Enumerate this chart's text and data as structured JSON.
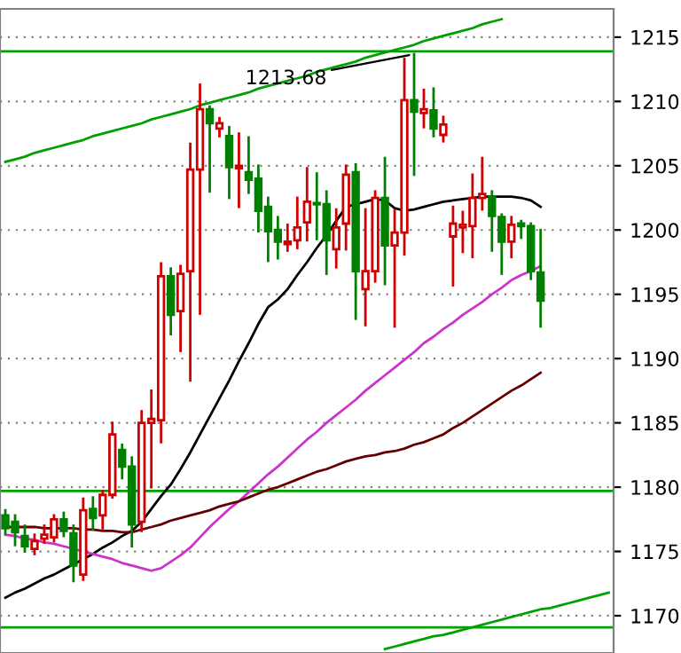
{
  "chart_data": {
    "type": "candlestick",
    "categories": [
      null,
      null,
      null,
      null,
      null,
      null,
      null,
      null,
      null,
      null,
      null,
      null,
      null,
      null,
      null,
      null,
      null,
      null,
      null,
      null,
      null,
      null,
      null,
      null,
      null,
      null,
      null,
      null,
      null,
      null,
      null,
      null,
      null,
      null,
      null,
      null,
      null,
      null,
      null,
      null,
      null,
      null,
      null,
      null,
      null,
      null,
      null,
      null,
      null,
      null,
      null,
      null,
      null,
      null,
      null,
      null,
      null,
      null,
      null,
      null,
      null,
      null,
      null
    ],
    "ohlc": [
      [
        1177.8,
        1178.2,
        1176.4,
        1176.8
      ],
      [
        1177.3,
        1177.8,
        1175.5,
        1176.5
      ],
      [
        1176.2,
        1177,
        1175,
        1175.4
      ],
      [
        1175.2,
        1176.3,
        1174.8,
        1175.8
      ],
      [
        1176,
        1177,
        1175.7,
        1176.3
      ],
      [
        1176.1,
        1177.8,
        1175.8,
        1177.5
      ],
      [
        1177.5,
        1178,
        1176.2,
        1176.6
      ],
      [
        1176.4,
        1177,
        1172.7,
        1173.9
      ],
      [
        1173.2,
        1179.1,
        1172.8,
        1178.2
      ],
      [
        1178.3,
        1179.2,
        1176.7,
        1177.6
      ],
      [
        1177.8,
        1179.7,
        1176.8,
        1179.4
      ],
      [
        1179.4,
        1185,
        1179.2,
        1184.1
      ],
      [
        1182.9,
        1183.3,
        1180.7,
        1181.6
      ],
      [
        1181.6,
        1182.3,
        1175.4,
        1177.1
      ],
      [
        1177.3,
        1185.9,
        1176.6,
        1185
      ],
      [
        1185,
        1187.5,
        1180,
        1185.3
      ],
      [
        1185.2,
        1197.4,
        1183.5,
        1196.4
      ],
      [
        1196.4,
        1197,
        1191.9,
        1193.4
      ],
      [
        1193.7,
        1197.2,
        1190.6,
        1196.6
      ],
      [
        1196.8,
        1206.7,
        1188.3,
        1204.7
      ],
      [
        1204.7,
        1211.3,
        1193.5,
        1209.4
      ],
      [
        1209.4,
        1209.6,
        1203,
        1208.3
      ],
      [
        1207.9,
        1208.7,
        1207.3,
        1208.3
      ],
      [
        1207.3,
        1208,
        1202.5,
        1204.9
      ],
      [
        1204.8,
        1207.5,
        1201.8,
        1205
      ],
      [
        1204.5,
        1207.2,
        1202.9,
        1203.9
      ],
      [
        1204,
        1205,
        1199.9,
        1201.5
      ],
      [
        1201.8,
        1202.5,
        1197.6,
        1199.9
      ],
      [
        1200,
        1201,
        1197.8,
        1199.1
      ],
      [
        1198.9,
        1200.4,
        1198.4,
        1199.1
      ],
      [
        1199.2,
        1202.5,
        1198.6,
        1200.2
      ],
      [
        1200.6,
        1204.8,
        1199.2,
        1202.2
      ],
      [
        1202.1,
        1204.4,
        1199.3,
        1202
      ],
      [
        1202,
        1203,
        1196.6,
        1199.2
      ],
      [
        1198.5,
        1201.6,
        1197.1,
        1200.2
      ],
      [
        1200.5,
        1205,
        1198.5,
        1204.3
      ],
      [
        1204.5,
        1205.1,
        1193.1,
        1196.8
      ],
      [
        1195.4,
        1201.6,
        1192.6,
        1196.8
      ],
      [
        1196.8,
        1203,
        1196,
        1202.5
      ],
      [
        1202.5,
        1205.6,
        1195.8,
        1198.8
      ],
      [
        1198.8,
        1201.5,
        1192.5,
        1199.8
      ],
      [
        1199.8,
        1213.3,
        1198.1,
        1210.1
      ],
      [
        1210.1,
        1213.68,
        1204.3,
        1209.2
      ],
      [
        1209.1,
        1210.9,
        1208,
        1209.4
      ],
      [
        1209.3,
        1211,
        1207.3,
        1207.9
      ],
      [
        1207.4,
        1208.8,
        1206.9,
        1208.2
      ],
      [
        1199.5,
        1201.8,
        1195.7,
        1200.5
      ],
      [
        1200.2,
        1201.4,
        1198.3,
        1200.4
      ],
      [
        1200.3,
        1204.3,
        1197.9,
        1202.5
      ],
      [
        1202.5,
        1205.6,
        1201.6,
        1202.8
      ],
      [
        1202.6,
        1203,
        1198.4,
        1201.1
      ],
      [
        1201,
        1201.2,
        1196.6,
        1199.1
      ],
      [
        1199.1,
        1201,
        1197.9,
        1200.4
      ],
      [
        1200.5,
        1200.7,
        1199.4,
        1200.3
      ],
      [
        1200.3,
        1200.5,
        1196.2,
        1196.8
      ],
      [
        1196.7,
        1200,
        1192.5,
        1194.5
      ],
      null,
      null,
      null,
      null,
      null,
      null,
      null
    ],
    "colors": [
      "#008000",
      "#008000",
      "#008000",
      "#d00000",
      "#d00000",
      "#d00000",
      "#008000",
      "#008000",
      "#d00000",
      "#008000",
      "#d00000",
      "#d00000",
      "#008000",
      "#008000",
      "#d00000",
      "#d00000",
      "#d00000",
      "#008000",
      "#d00000",
      "#d00000",
      "#d00000",
      "#008000",
      "#d00000",
      "#008000",
      "#d00000",
      "#008000",
      "#008000",
      "#008000",
      "#008000",
      "#d00000",
      "#d00000",
      "#d00000",
      "#008000",
      "#008000",
      "#d00000",
      "#d00000",
      "#008000",
      "#d00000",
      "#d00000",
      "#008000",
      "#d00000",
      "#d00000",
      "#008000",
      "#d00000",
      "#008000",
      "#d00000",
      "#d00000",
      "#d00000",
      "#d00000",
      "#d00000",
      "#008000",
      "#008000",
      "#d00000",
      "#008000",
      "#008000",
      "#008000",
      null,
      null,
      null,
      null,
      null,
      null,
      null
    ],
    "series": [
      {
        "type": "line",
        "color": "#000000",
        "values": [
          1171.4,
          1171.8,
          1172.1,
          1172.5,
          1172.9,
          1173.2,
          1173.6,
          1174.0,
          1174.4,
          1174.8,
          1175.3,
          1175.7,
          1176.2,
          1176.6,
          1177.3,
          1178.3,
          1179.3,
          1180.2,
          1181.4,
          1182.7,
          1184.1,
          1185.5,
          1186.9,
          1188.3,
          1189.8,
          1191.2,
          1192.7,
          1194.0,
          1194.6,
          1195.4,
          1196.5,
          1197.5,
          1198.6,
          1199.6,
          1200.7,
          1201.8,
          1202.0,
          1202.2,
          1202.4,
          1202.3,
          1201.7,
          1201.5,
          1201.6,
          1201.8,
          1202.0,
          1202.2,
          1202.3,
          1202.4,
          1202.5,
          1202.6,
          1202.6,
          1202.6,
          1202.6,
          1202.5,
          1202.3,
          1201.8,
          null,
          null,
          null,
          null,
          null,
          null,
          null
        ]
      },
      {
        "type": "line",
        "color": "#cc33cc",
        "values": [
          1176.3,
          1176.2,
          1176.0,
          1175.9,
          1175.7,
          1175.6,
          1175.4,
          1175.2,
          1175.0,
          1174.8,
          1174.6,
          1174.4,
          1174.1,
          1173.9,
          1173.7,
          1173.5,
          1173.7,
          1174.2,
          1174.7,
          1175.3,
          1176.1,
          1176.9,
          1177.6,
          1178.3,
          1178.9,
          1179.6,
          1180.3,
          1181.0,
          1181.6,
          1182.3,
          1183.0,
          1183.7,
          1184.3,
          1185.0,
          1185.6,
          1186.2,
          1186.8,
          1187.5,
          1188.1,
          1188.7,
          1189.3,
          1189.9,
          1190.5,
          1191.2,
          1191.7,
          1192.3,
          1192.8,
          1193.4,
          1193.9,
          1194.4,
          1195.0,
          1195.5,
          1196.1,
          1196.5,
          1196.8,
          1197.2,
          null,
          null,
          null,
          null,
          null,
          null,
          null
        ]
      },
      {
        "type": "line",
        "color": "#660000",
        "values": [
          1176.9,
          1176.9,
          1176.9,
          1176.9,
          1176.8,
          1176.8,
          1176.8,
          1176.8,
          1176.7,
          1176.7,
          1176.6,
          1176.6,
          1176.5,
          1176.5,
          1176.7,
          1176.9,
          1177.1,
          1177.4,
          1177.6,
          1177.8,
          1178.0,
          1178.2,
          1178.5,
          1178.7,
          1178.9,
          1179.2,
          1179.5,
          1179.8,
          1180.0,
          1180.3,
          1180.6,
          1180.9,
          1181.2,
          1181.4,
          1181.7,
          1182.0,
          1182.2,
          1182.4,
          1182.5,
          1182.7,
          1182.8,
          1183.0,
          1183.3,
          1183.5,
          1183.8,
          1184.1,
          1184.6,
          1185.0,
          1185.5,
          1186.0,
          1186.5,
          1187.0,
          1187.5,
          1187.9,
          1188.4,
          1188.9,
          null,
          null,
          null,
          null,
          null,
          null,
          null
        ]
      },
      {
        "type": "line",
        "color": "#00a000",
        "values": [
          1205.3,
          1205.5,
          1205.7,
          1206.0,
          1206.2,
          1206.4,
          1206.6,
          1206.8,
          1207.0,
          1207.3,
          1207.5,
          1207.7,
          1207.9,
          1208.1,
          1208.3,
          1208.6,
          1208.8,
          1209.0,
          1209.2,
          1209.4,
          1209.7,
          1209.9,
          1210.1,
          1210.3,
          1210.5,
          1210.7,
          1211.0,
          1211.2,
          1211.4,
          1211.6,
          1211.8,
          1212.0,
          1212.3,
          1212.5,
          1212.7,
          1212.9,
          1213.1,
          1213.4,
          1213.6,
          1213.8,
          1214.0,
          1214.2,
          1214.4,
          1214.7,
          1214.9,
          1215.1,
          1215.3,
          1215.5,
          1215.7,
          1216.0,
          1216.2,
          1216.4,
          null,
          null,
          null,
          null,
          null,
          null,
          null,
          null,
          null,
          null,
          null
        ]
      },
      {
        "type": "line",
        "color": "#00a000",
        "values": [
          null,
          null,
          null,
          null,
          null,
          null,
          null,
          null,
          null,
          null,
          null,
          null,
          null,
          null,
          null,
          null,
          null,
          null,
          null,
          null,
          null,
          null,
          null,
          null,
          null,
          null,
          null,
          null,
          null,
          null,
          null,
          null,
          null,
          null,
          null,
          null,
          null,
          null,
          null,
          1167.4,
          1167.6,
          1167.8,
          1168.0,
          1168.2,
          1168.4,
          1168.5,
          1168.7,
          1168.9,
          1169.1,
          1169.3,
          1169.5,
          1169.7,
          1169.9,
          1170.1,
          1170.3,
          1170.5,
          1170.6,
          1170.8,
          1171.0,
          1171.2,
          1171.4,
          1171.6,
          1171.8
        ]
      }
    ],
    "ref_lines": [
      {
        "axis": "y",
        "value": 1213.9,
        "color": "#00a000"
      },
      {
        "axis": "y",
        "value": 1179.7,
        "color": "#00a000"
      },
      {
        "axis": "y",
        "value": 1169.1,
        "color": "#00a000"
      }
    ],
    "annotations": [
      "1213.68"
    ],
    "ylim": [
      1167.1,
      1217.2
    ],
    "yticks": [
      1170,
      1175,
      1180,
      1185,
      1190,
      1195,
      1200,
      1205,
      1210,
      1215
    ],
    "grid": "y",
    "tick_labels": "y"
  }
}
